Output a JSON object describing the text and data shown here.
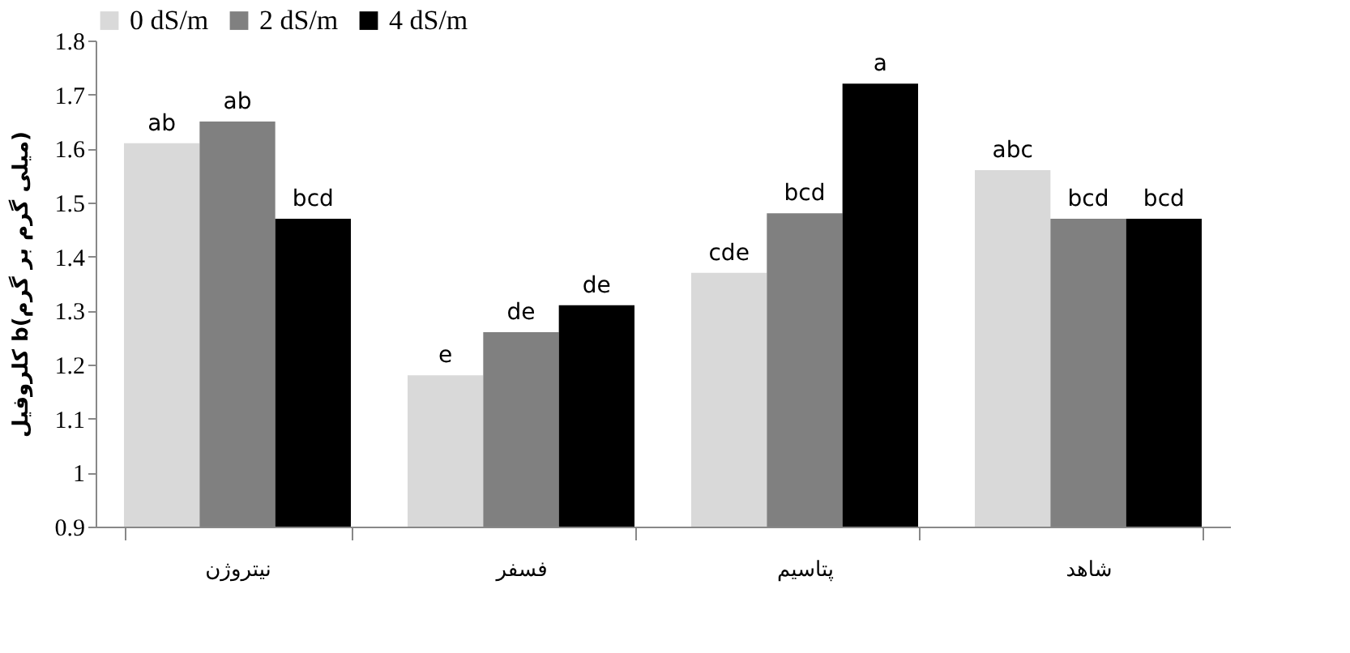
{
  "chart_data": {
    "type": "bar",
    "ylabel": "کلروفیل b(میلی گرم بر گرم)",
    "categories": [
      "نیتروژن",
      "فسفر",
      "پتاسیم",
      "شاهد"
    ],
    "series": [
      {
        "name": "0 dS/m",
        "color": "#d9d9d9",
        "values": [
          1.61,
          1.18,
          1.37,
          1.56
        ],
        "value_labels": [
          "ab",
          "e",
          "cde",
          "abc"
        ]
      },
      {
        "name": "2 dS/m",
        "color": "#808080",
        "values": [
          1.65,
          1.26,
          1.48,
          1.47
        ],
        "value_labels": [
          "ab",
          "de",
          "bcd",
          "bcd"
        ]
      },
      {
        "name": "4 dS/m",
        "color": "#000000",
        "values": [
          1.47,
          1.31,
          1.72,
          1.47
        ],
        "value_labels": [
          "bcd",
          "de",
          "a",
          "bcd"
        ]
      }
    ],
    "ylim": [
      0.9,
      1.8
    ],
    "yticks": [
      0.9,
      1,
      1.1,
      1.2,
      1.3,
      1.4,
      1.5,
      1.6,
      1.7,
      1.8
    ],
    "legend": "top"
  }
}
